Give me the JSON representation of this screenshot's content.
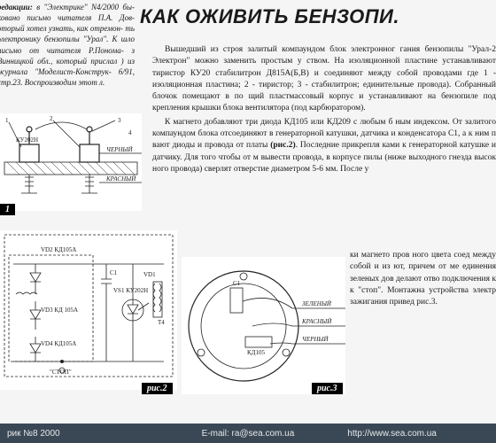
{
  "sidebar": {
    "text": "<b>редакции:</b> в \"Электрике\" N4/2000 бы- ковано письмо читателя П.А. Дов- оторый хотел узнать, как отремон- ть электронику бензопилы \"Урал\". К шло письмо от читателя Р.Понома- з Винницкой обл., который прислал ) из журнала \"Моделист-Конструк- 6/91, стр.23. Воспроизводим этот л."
  },
  "headline": "КАК ОЖИВИТЬ БЕНЗОПИ.",
  "body": {
    "p1": "Вышедший из строя залитый компаундом блок электронног гания бензопилы \"Урал-2 Электрон\" можно заменить простым у ством. На изоляционной пластине устанавливают тиристор КУ20 стабилитрон Д815А(Б,В) и соединяют между собой проводами где 1 - изоляционная пластина; 2 - тиристор; 3 - стабилитрон; единительные провода). Собранный блочок помещают в по щий пластмассовый корпус и устанавливают на бензопиле под крепления крышки блока вентилятора (под карбюратором).",
    "p2": "К магнето добавляют три диода КД105 или КД209 с любым б ным индексом. От залитого компаундом блока отсоединяют в генераторной катушки, датчика и конденсатора С1, а к ним п вают диоды и провода от платы <b>(рис.2)</b>. Последние прикрепля ками к генераторной катушке и датчику. Для того чтобы от м вывести провода, в корпусе пилы (ниже выходного гнезда высок ного провода) сверлят отверстие диаметром 5-6 мм. После у"
  },
  "narrow": {
    "text": "ки магнето пров ного цвета соед между собой и из ют, причем от ме единения зеленых дов делают отво подключения к к \"стоп\". Монтажна устройства электр зажигания привед рис.3."
  },
  "fig1": {
    "label": "1",
    "comp1": "КУ202Н",
    "num1": "1",
    "num2": "2",
    "num3": "3",
    "num4": "4",
    "w_black": "ЧЕРНЫЙ",
    "w_red": "КРАСНЫЙ"
  },
  "fig2": {
    "label": "рис.2",
    "vd2": "VD2 КД105А",
    "vd3": "VD3 КД 105А",
    "vd4": "VD4 КД105А",
    "c1": "C1",
    "vs1": "VS1 КУ202Н",
    "vd1": "VD1",
    "stop": "\"СТОП\"",
    "t4": "T4"
  },
  "fig3": {
    "label": "рис.3",
    "c1": "C1",
    "kd105": "КД105",
    "w_green": "ЗЕЛЕНЫЙ",
    "w_red": "КРАСНЫЙ",
    "w_black": "ЧЕРНЫЙ"
  },
  "footer": {
    "issue": "рик №8 2000",
    "email": "E-mail: ra@sea.com.ua",
    "url": "http://www.sea.com.ua"
  },
  "colors": {
    "footer_bg": "#3a4856",
    "page_bg": "#f5f5f5",
    "text": "#1a1a1a"
  }
}
